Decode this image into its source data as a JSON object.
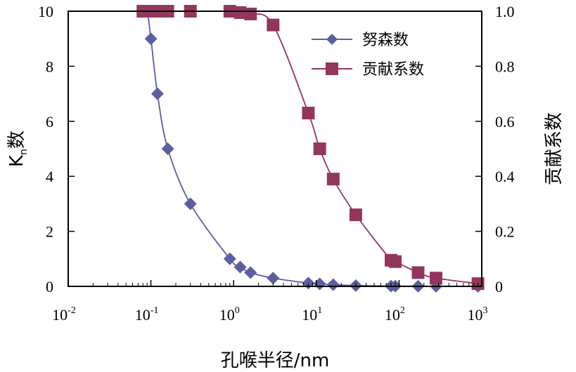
{
  "chart_data": {
    "type": "scatter",
    "x_scale": "log",
    "xlim": [
      0.01,
      1000
    ],
    "ylim_left": [
      0,
      10
    ],
    "ylim_right": [
      0,
      1.0
    ],
    "x_ticks": [
      {
        "base": "10",
        "exp": "-2"
      },
      {
        "base": "10",
        "exp": "-1"
      },
      {
        "base": "10",
        "exp": "0"
      },
      {
        "base": "10",
        "exp": "1"
      },
      {
        "base": "10",
        "exp": "2"
      },
      {
        "base": "10",
        "exp": "3"
      }
    ],
    "y_left_ticks": [
      "0",
      "2",
      "4",
      "6",
      "8",
      "10"
    ],
    "y_right_ticks": [
      "0",
      "0.2",
      "0.4",
      "0.6",
      "0.8",
      "1.0"
    ],
    "xlabel": "孔喉半径/nm",
    "ylabel_left": {
      "main": "K",
      "sub": "n",
      "rest": "数"
    },
    "ylabel_right": "贡献系数",
    "grid": false,
    "legend_position": "top-right",
    "series": [
      {
        "name": "努森数",
        "axis": "left",
        "marker": "diamond",
        "color": "#5b5ea0",
        "x": [
          0.08,
          0.09,
          0.1,
          0.12,
          0.16,
          0.3,
          0.9,
          1.2,
          1.6,
          3,
          8,
          11,
          16,
          30,
          80,
          90,
          170,
          280,
          900
        ],
        "y": [
          10,
          10,
          9,
          7,
          5,
          3,
          1.0,
          0.7,
          0.5,
          0.3,
          0.12,
          0.09,
          0.06,
          0.03,
          0.01,
          0.01,
          0.005,
          0.0,
          0.0
        ]
      },
      {
        "name": "贡献系数",
        "axis": "right",
        "marker": "square",
        "color": "#93365c",
        "x": [
          0.08,
          0.09,
          0.1,
          0.12,
          0.16,
          0.3,
          0.9,
          1.2,
          1.6,
          3,
          8,
          11,
          16,
          30,
          80,
          90,
          170,
          280,
          900
        ],
        "y": [
          1.0,
          1.0,
          1.0,
          1.0,
          1.0,
          1.0,
          1.0,
          0.995,
          0.99,
          0.95,
          0.63,
          0.5,
          0.39,
          0.26,
          0.095,
          0.09,
          0.05,
          0.03,
          0.01
        ]
      }
    ]
  }
}
